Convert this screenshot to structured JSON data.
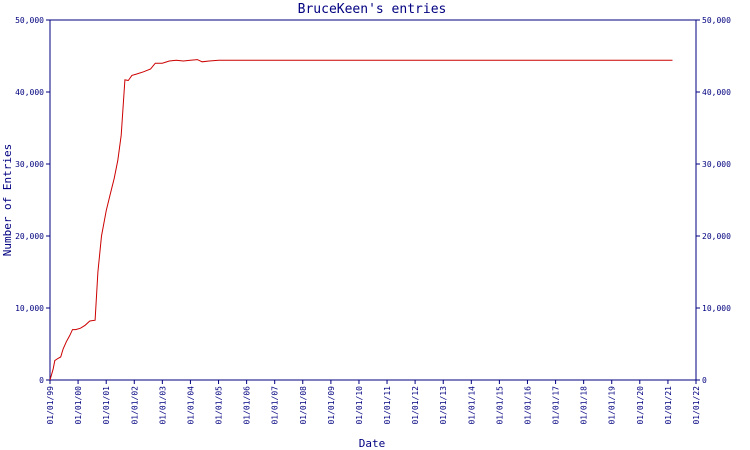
{
  "chart_data": {
    "type": "line",
    "title": "BruceKeen's entries",
    "xlabel": "Date",
    "ylabel": "Number of Entries",
    "x_tick_labels": [
      "01/01/99",
      "01/01/00",
      "01/01/01",
      "01/01/02",
      "01/01/03",
      "01/01/04",
      "01/01/05",
      "01/01/06",
      "01/01/07",
      "01/01/08",
      "01/01/09",
      "01/01/10",
      "01/01/11",
      "01/01/12",
      "01/01/13",
      "01/01/14",
      "01/01/15",
      "01/01/16",
      "01/01/17",
      "01/01/18",
      "01/01/19",
      "01/01/20",
      "01/01/21",
      "01/01/22"
    ],
    "y_ticks": [
      0,
      10000,
      20000,
      30000,
      40000,
      50000
    ],
    "y_tick_labels": [
      "0",
      "10,000",
      "20,000",
      "30,000",
      "40,000",
      "50,000"
    ],
    "xlim": [
      "1999-01-01",
      "2022-01-01"
    ],
    "ylim": [
      0,
      50000
    ],
    "grid": false,
    "legend": "none",
    "colors": {
      "line": "#cc0000",
      "axes": "#000080",
      "text": "#000080"
    },
    "series": [
      {
        "points": [
          [
            "1999-01-01",
            0
          ],
          [
            "1999-02-10",
            1500
          ],
          [
            "1999-03-05",
            2700
          ],
          [
            "1999-04-15",
            3000
          ],
          [
            "1999-05-20",
            3200
          ],
          [
            "1999-06-20",
            4300
          ],
          [
            "1999-08-01",
            5300
          ],
          [
            "1999-09-15",
            6200
          ],
          [
            "1999-10-20",
            7000
          ],
          [
            "1999-12-01",
            7000
          ],
          [
            "2000-02-01",
            7200
          ],
          [
            "2000-04-01",
            7600
          ],
          [
            "2000-06-01",
            8200
          ],
          [
            "2000-08-10",
            8300
          ],
          [
            "2000-09-15",
            15000
          ],
          [
            "2000-11-01",
            20000
          ],
          [
            "2001-01-01",
            23500
          ],
          [
            "2001-02-15",
            25500
          ],
          [
            "2001-04-15",
            28000
          ],
          [
            "2001-06-01",
            30500
          ],
          [
            "2001-07-15",
            34000
          ],
          [
            "2001-09-01",
            41700
          ],
          [
            "2001-10-15",
            41600
          ],
          [
            "2001-12-01",
            42300
          ],
          [
            "2002-02-01",
            42500
          ],
          [
            "2002-05-01",
            42800
          ],
          [
            "2002-08-01",
            43200
          ],
          [
            "2002-10-01",
            44000
          ],
          [
            "2003-01-01",
            44000
          ],
          [
            "2003-04-01",
            44300
          ],
          [
            "2003-07-01",
            44400
          ],
          [
            "2003-10-01",
            44300
          ],
          [
            "2004-01-01",
            44400
          ],
          [
            "2004-04-01",
            44500
          ],
          [
            "2004-06-01",
            44200
          ],
          [
            "2004-09-01",
            44300
          ],
          [
            "2005-01-01",
            44400
          ],
          [
            "2008-01-01",
            44400
          ],
          [
            "2012-01-01",
            44400
          ],
          [
            "2016-01-01",
            44400
          ],
          [
            "2021-03-01",
            44400
          ]
        ]
      }
    ]
  }
}
